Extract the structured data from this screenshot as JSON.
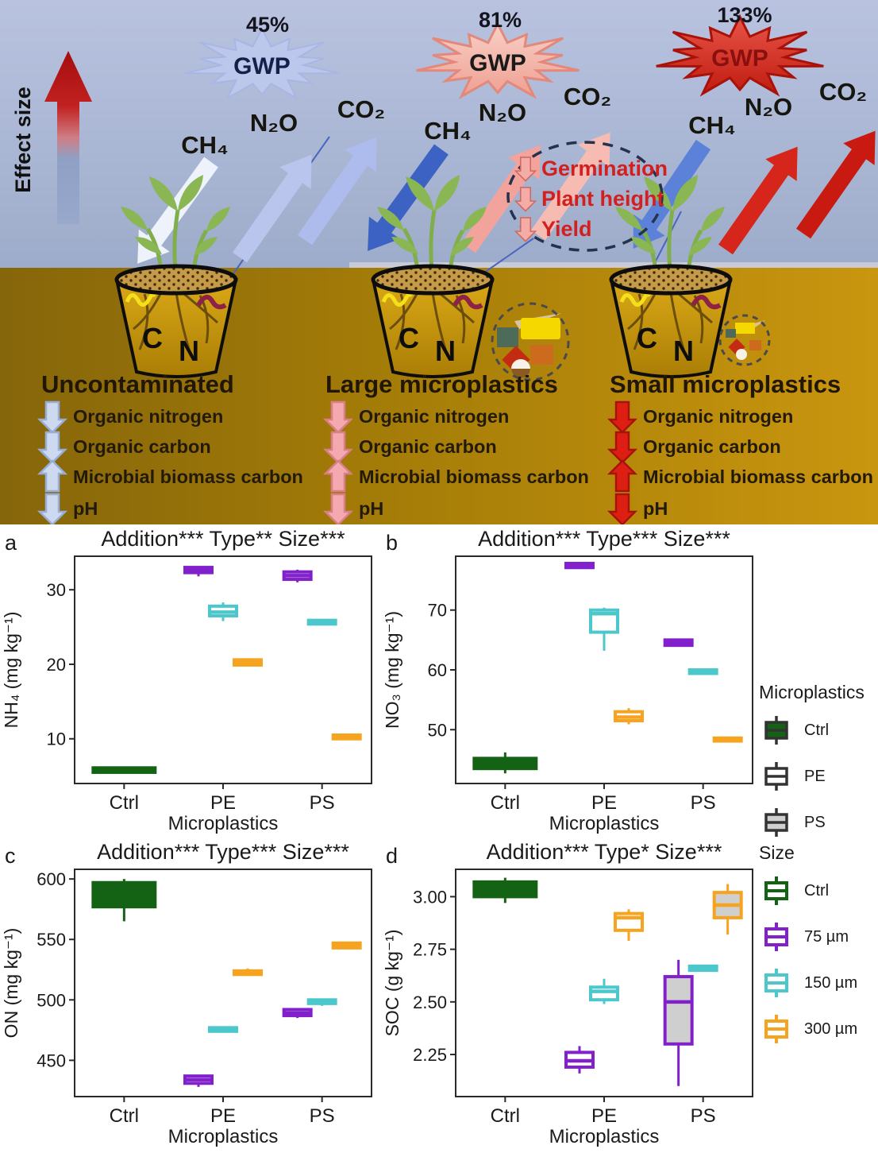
{
  "illustration": {
    "effect_size_label": "Effect size",
    "gwp_label": "GWP",
    "gases": [
      "CH₄",
      "N₂O",
      "CO₂"
    ],
    "pot_labels": [
      "C",
      "N"
    ],
    "plant_callout": {
      "items": [
        "Germination",
        "Plant height",
        "Yield"
      ]
    },
    "scenarios": [
      {
        "title": "Uncontaminated",
        "gwp_percent": "45%",
        "items": [
          {
            "dir": "down",
            "label": "Organic nitrogen"
          },
          {
            "dir": "down",
            "label": "Organic carbon"
          },
          {
            "dir": "up",
            "label": "Microbial biomass carbon"
          },
          {
            "dir": "down",
            "label": "pH"
          }
        ]
      },
      {
        "title": "Large microplastics",
        "gwp_percent": "81%",
        "items": [
          {
            "dir": "down",
            "label": "Organic nitrogen"
          },
          {
            "dir": "down",
            "label": "Organic carbon"
          },
          {
            "dir": "up",
            "label": "Microbial biomass carbon"
          },
          {
            "dir": "down",
            "label": "pH"
          }
        ]
      },
      {
        "title": "Small microplastics",
        "gwp_percent": "133%",
        "items": [
          {
            "dir": "down",
            "label": "Organic nitrogen"
          },
          {
            "dir": "down",
            "label": "Organic carbon"
          },
          {
            "dir": "up",
            "label": "Microbial biomass carbon"
          },
          {
            "dir": "down",
            "label": "pH"
          }
        ]
      }
    ]
  },
  "chart_data": {
    "type": "boxplot",
    "xlabel": "Microplastics",
    "groups": [
      "Ctrl",
      "PE",
      "PS"
    ],
    "size_colors": {
      "Ctrl": "#146314",
      "75": "#8220cc",
      "150": "#4cc8cc",
      "300": "#f6a41f"
    },
    "type_fills": {
      "Ctrl": "#146314",
      "PE": "#ffffff",
      "PS": "#cfcfcf"
    },
    "panels": [
      {
        "id": "a",
        "letter": "a",
        "title": "Addition*** Type** Size***",
        "ylabel": "NH₄ (mg kg⁻¹)",
        "ylim": [
          4,
          34.5
        ],
        "yticks": [
          {
            "v": 10,
            "label": "10"
          },
          {
            "v": 20,
            "label": "20"
          },
          {
            "v": 30,
            "label": "30"
          }
        ],
        "boxes": [
          {
            "group": "Ctrl",
            "size": "Ctrl",
            "med": 5.8,
            "q1": 5.5,
            "q3": 6.1
          },
          {
            "group": "PE",
            "size": "75",
            "med": 32.6,
            "q1": 32.3,
            "q3": 33.0,
            "lo": 31.8,
            "hi": 33.1
          },
          {
            "group": "PE",
            "size": "150",
            "med": 27.0,
            "q1": 26.5,
            "q3": 27.8,
            "lo": 25.8,
            "hi": 28.3
          },
          {
            "group": "PE",
            "size": "300",
            "med": 20.2,
            "q1": 19.9,
            "q3": 20.6,
            "lo": 19.8,
            "hi": 20.8
          },
          {
            "group": "PS",
            "size": "75",
            "med": 31.9,
            "q1": 31.4,
            "q3": 32.4,
            "lo": 31.0,
            "hi": 32.7
          },
          {
            "group": "PS",
            "size": "150",
            "med": 25.6,
            "q1": 25.4,
            "q3": 25.9
          },
          {
            "group": "PS",
            "size": "300",
            "med": 10.2,
            "q1": 10.0,
            "q3": 10.5
          }
        ]
      },
      {
        "id": "b",
        "letter": "b",
        "title": "Addition*** Type*** Size***",
        "ylabel": "NO₃ (mg kg⁻¹)",
        "ylim": [
          41,
          79
        ],
        "yticks": [
          {
            "v": 50,
            "label": "50"
          },
          {
            "v": 60,
            "label": "60"
          },
          {
            "v": 70,
            "label": "70"
          }
        ],
        "boxes": [
          {
            "group": "Ctrl",
            "size": "Ctrl",
            "med": 44.3,
            "q1": 43.5,
            "q3": 45.2,
            "lo": 42.7,
            "hi": 46.2
          },
          {
            "group": "PE",
            "size": "75",
            "med": 77.4,
            "q1": 77.1,
            "q3": 77.8
          },
          {
            "group": "PE",
            "size": "150",
            "med": 69.4,
            "q1": 66.3,
            "q3": 70.0,
            "lo": 63.2,
            "hi": 70.4
          },
          {
            "group": "PE",
            "size": "300",
            "med": 52.1,
            "q1": 51.5,
            "q3": 53.0,
            "lo": 50.9,
            "hi": 53.6
          },
          {
            "group": "PS",
            "size": "75",
            "med": 64.5,
            "q1": 64.1,
            "q3": 65.0
          },
          {
            "group": "PS",
            "size": "150",
            "med": 59.7,
            "q1": 59.4,
            "q3": 60.0
          },
          {
            "group": "PS",
            "size": "300",
            "med": 48.3,
            "q1": 48.1,
            "q3": 48.6
          }
        ]
      },
      {
        "id": "c",
        "letter": "c",
        "title": "Addition*** Type*** Size***",
        "ylabel": "ON (mg kg⁻¹)",
        "ylim": [
          420,
          608
        ],
        "yticks": [
          {
            "v": 450,
            "label": "450"
          },
          {
            "v": 500,
            "label": "500"
          },
          {
            "v": 550,
            "label": "550"
          },
          {
            "v": 600,
            "label": "600"
          }
        ],
        "boxes": [
          {
            "group": "Ctrl",
            "size": "Ctrl",
            "med": 586,
            "q1": 577,
            "q3": 597,
            "lo": 565,
            "hi": 600
          },
          {
            "group": "PE",
            "size": "75",
            "med": 434,
            "q1": 431,
            "q3": 437,
            "lo": 428,
            "hi": 437
          },
          {
            "group": "PE",
            "size": "150",
            "med": 475,
            "q1": 474,
            "q3": 477
          },
          {
            "group": "PE",
            "size": "300",
            "med": 522,
            "q1": 521,
            "q3": 524,
            "lo": 520,
            "hi": 526
          },
          {
            "group": "PS",
            "size": "75",
            "med": 489,
            "q1": 487,
            "q3": 492,
            "lo": 485,
            "hi": 492
          },
          {
            "group": "PS",
            "size": "150",
            "med": 499,
            "q1": 497,
            "q3": 500,
            "lo": 495,
            "hi": 500
          },
          {
            "group": "PS",
            "size": "300",
            "med": 545,
            "q1": 543,
            "q3": 547,
            "lo": 542,
            "hi": 548
          }
        ]
      },
      {
        "id": "d",
        "letter": "d",
        "title": "Addition*** Type* Size***",
        "ylabel": "SOC (g kg⁻¹)",
        "ylim": [
          2.05,
          3.13
        ],
        "yticks": [
          {
            "v": 2.25,
            "label": "2.25"
          },
          {
            "v": 2.5,
            "label": "2.50"
          },
          {
            "v": 2.75,
            "label": "2.75"
          },
          {
            "v": 3.0,
            "label": "3.00"
          }
        ],
        "boxes": [
          {
            "group": "Ctrl",
            "size": "Ctrl",
            "med": 3.04,
            "q1": 3.0,
            "q3": 3.07,
            "lo": 2.97,
            "hi": 3.09
          },
          {
            "group": "PE",
            "size": "75",
            "med": 2.22,
            "q1": 2.19,
            "q3": 2.26,
            "lo": 2.16,
            "hi": 2.29
          },
          {
            "group": "PE",
            "size": "150",
            "med": 2.55,
            "q1": 2.51,
            "q3": 2.57,
            "lo": 2.49,
            "hi": 2.61
          },
          {
            "group": "PE",
            "size": "300",
            "med": 2.9,
            "q1": 2.84,
            "q3": 2.92,
            "lo": 2.79,
            "hi": 2.94
          },
          {
            "group": "PS",
            "size": "75",
            "med": 2.5,
            "q1": 2.3,
            "q3": 2.62,
            "lo": 2.1,
            "hi": 2.7
          },
          {
            "group": "PS",
            "size": "150",
            "med": 2.66,
            "q1": 2.65,
            "q3": 2.67
          },
          {
            "group": "PS",
            "size": "300",
            "med": 2.96,
            "q1": 2.9,
            "q3": 3.02,
            "lo": 2.82,
            "hi": 3.06
          }
        ]
      }
    ]
  },
  "legends": {
    "microplastics": {
      "title": "Microplastics",
      "entries": [
        {
          "label": "Ctrl",
          "fill": "#146314"
        },
        {
          "label": "PE",
          "fill": "#ffffff"
        },
        {
          "label": "PS",
          "fill": "#cfcfcf"
        }
      ]
    },
    "size": {
      "title": "Size",
      "entries": [
        {
          "label": "Ctrl",
          "color": "#146314"
        },
        {
          "label": "75 µm",
          "color": "#8220cc"
        },
        {
          "label": "150 µm",
          "color": "#4cc8cc"
        },
        {
          "label": "300 µm",
          "color": "#f6a41f"
        }
      ]
    }
  }
}
